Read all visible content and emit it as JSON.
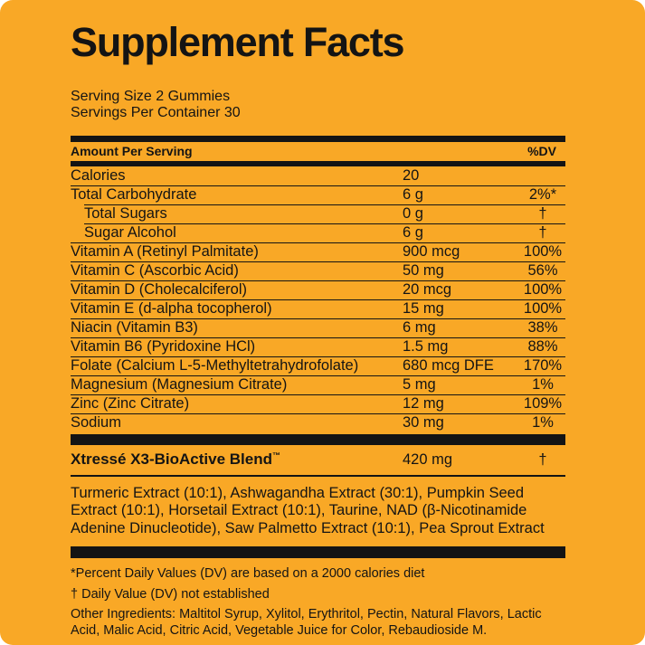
{
  "label": {
    "title": "Supplement Facts",
    "serving_size": "Serving Size 2 Gummies",
    "servings_per_container": "Servings Per Container 30",
    "table": {
      "header": {
        "amount": "Amount Per Serving",
        "dv": "%DV"
      },
      "rows": [
        {
          "name": "Calories",
          "amount": "20",
          "dv": "",
          "indent": false
        },
        {
          "name": "Total Carbohydrate",
          "amount": "6 g",
          "dv": "2%*",
          "indent": false
        },
        {
          "name": "Total Sugars",
          "amount": "0 g",
          "dv": "†",
          "indent": true
        },
        {
          "name": "Sugar Alcohol",
          "amount": "6 g",
          "dv": "†",
          "indent": true
        },
        {
          "name": "Vitamin A (Retinyl Palmitate)",
          "amount": "900 mcg",
          "dv": "100%",
          "indent": false
        },
        {
          "name": "Vitamin C (Ascorbic Acid)",
          "amount": "50 mg",
          "dv": "56%",
          "indent": false
        },
        {
          "name": "Vitamin D (Cholecalciferol)",
          "amount": "20 mcg",
          "dv": "100%",
          "indent": false
        },
        {
          "name": "Vitamin E (d-alpha tocopherol)",
          "amount": "15 mg",
          "dv": "100%",
          "indent": false
        },
        {
          "name": "Niacin (Vitamin B3)",
          "amount": "6 mg",
          "dv": "38%",
          "indent": false
        },
        {
          "name": "Vitamin B6 (Pyridoxine HCl)",
          "amount": "1.5 mg",
          "dv": "88%",
          "indent": false
        },
        {
          "name": "Folate (Calcium L-5-Methyltetrahydrofolate)",
          "amount": "680 mcg DFE",
          "dv": "170%",
          "indent": false
        },
        {
          "name": "Magnesium (Magnesium Citrate)",
          "amount": "5 mg",
          "dv": "1%",
          "indent": false
        },
        {
          "name": "Zinc (Zinc Citrate)",
          "amount": "12 mg",
          "dv": "109%",
          "indent": false
        },
        {
          "name": "Sodium",
          "amount": "30 mg",
          "dv": "1%",
          "indent": false
        }
      ],
      "blend": {
        "name": "Xtressé X3-BioActive Blend",
        "trademark": "™",
        "amount": "420 mg",
        "dv": "†"
      },
      "blend_ingredients": "Turmeric Extract (10:1), Ashwagandha Extract (30:1), Pumpkin Seed Extract (10:1), Horsetail Extract (10:1), Taurine, NAD (β-Nicotinamide Adenine Dinucleotide), Saw Palmetto Extract (10:1), Pea Sprout Extract"
    },
    "footnotes": {
      "dv_note": "*Percent Daily Values (DV) are based on a 2000 calories diet",
      "dagger_note": "† Daily Value (DV) not established",
      "other_ingredients": "Other Ingredients: Maltitol Syrup, Xylitol, Erythritol, Pectin, Natural Flavors, Lactic Acid, Malic Acid, Citric Acid, Vegetable Juice for Color, Rebaudioside M."
    },
    "colors": {
      "background": "#F9A826",
      "ink": "#141414"
    }
  }
}
